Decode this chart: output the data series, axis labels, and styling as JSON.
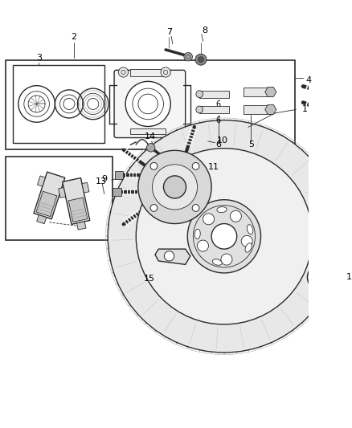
{
  "background_color": "#ffffff",
  "line_color": "#2a2a2a",
  "label_color": "#000000",
  "fig_width": 4.38,
  "fig_height": 5.33
}
